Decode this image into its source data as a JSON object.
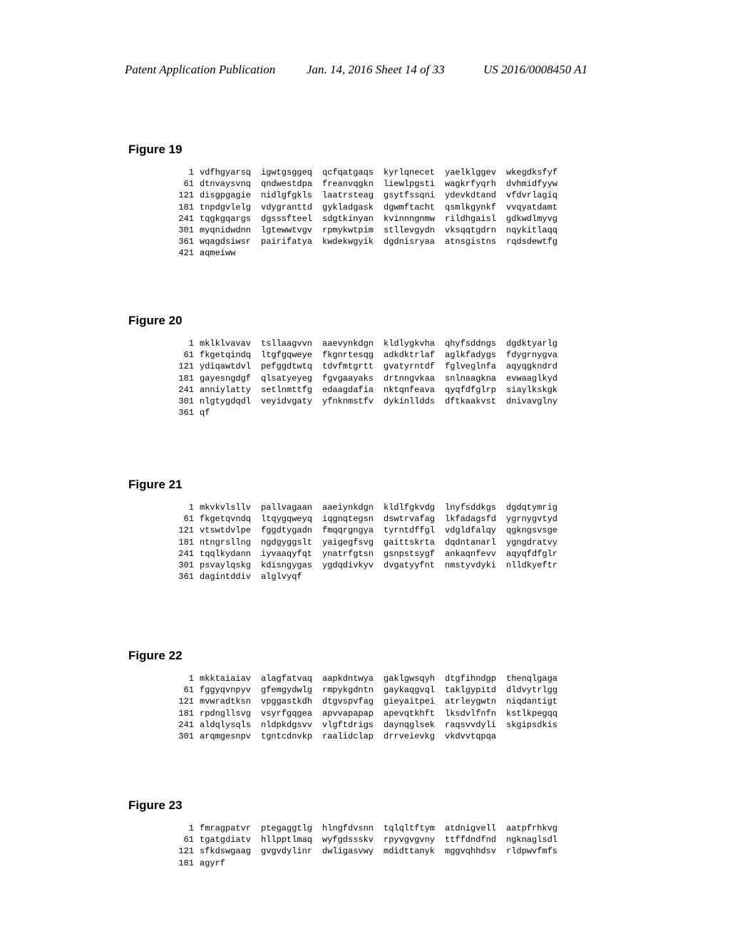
{
  "header": {
    "left": "Patent Application Publication",
    "mid": "Jan. 14, 2016  Sheet 14 of 33",
    "right": "US 2016/0008450 A1"
  },
  "figures": [
    {
      "title": "Figure 19",
      "className": "fig19",
      "lines": [
        {
          "num": "1",
          "cols": [
            "vdfhgyarsq",
            "igwtgsggeq",
            "qcfqatgaqs",
            "kyrlqnecet",
            "yaelklggev",
            "wkegdksfyf"
          ]
        },
        {
          "num": "61",
          "cols": [
            "dtnvaysvnq",
            "qndwestdpa",
            "freanvqgkn",
            "liewlpgsti",
            "wagkrfyqrh",
            "dvhmidfyyw"
          ]
        },
        {
          "num": "121",
          "cols": [
            "disgpgagie",
            "nidlgfgkls",
            "laatrsteag",
            "gsytfssqni",
            "ydevkdtand",
            "vfdvrlagiq"
          ]
        },
        {
          "num": "181",
          "cols": [
            "tnpdgvlelg",
            "vdygranttd",
            "gykladgask",
            "dgwmftacht",
            "qsmlkgynkf",
            "vvqyatdamt"
          ]
        },
        {
          "num": "241",
          "cols": [
            "tqgkgqargs",
            "dgsssfteel",
            "sdgtkinyan",
            "kvinnngnmw",
            "rildhgaisl",
            "gdkwdlmyvg"
          ]
        },
        {
          "num": "301",
          "cols": [
            "myqnidwdnn",
            "lgtewwtvgv",
            "rpmykwtpim",
            "stllevgydn",
            "vksqqtgdrn",
            "nqykitlaqq"
          ]
        },
        {
          "num": "361",
          "cols": [
            "wqagdsiwsr",
            "pairifatya",
            "kwdekwgyik",
            "dgdnisryaa",
            "atnsgistns",
            "rqdsdewtfg"
          ]
        },
        {
          "num": "421",
          "cols": [
            "aqmeiww",
            "",
            "",
            "",
            "",
            ""
          ]
        }
      ]
    },
    {
      "title": "Figure 20",
      "className": "fig20",
      "lines": [
        {
          "num": "1",
          "cols": [
            "mklklvavav",
            "tsllaagvvn",
            "aaevynkdgn",
            "kldlygkvha",
            "qhyfsddngs",
            "dgdktyarlg"
          ]
        },
        {
          "num": "61",
          "cols": [
            "fkgetqindq",
            "ltgfgqweye",
            "fkgnrtesqg",
            "adkdktrlaf",
            "aglkfadygs",
            "fdygrnygva"
          ]
        },
        {
          "num": "121",
          "cols": [
            "ydiqawtdvl",
            "pefggdtwtq",
            "tdvfmtgrtt",
            "gvatyrntdf",
            "fglveglnfa",
            "aqyqgkndrd"
          ]
        },
        {
          "num": "181",
          "cols": [
            "gayesngdgf",
            "qlsatyeyeg",
            "fgvgaayaks",
            "drtnngvkaa",
            "snlnaagkna",
            "evwaaglkyd"
          ]
        },
        {
          "num": "241",
          "cols": [
            "anniylatty",
            "setlnmttfg",
            "edaagdafia",
            "nktqnfeava",
            "qyqfdfglrp",
            "siaylkskgk"
          ]
        },
        {
          "num": "301",
          "cols": [
            "nlgtygdqdl",
            "veyidvgaty",
            "yfnknmstfv",
            "dykinlldds",
            "dftkaakvst",
            "dnivavglny"
          ]
        },
        {
          "num": "361",
          "cols": [
            "qf",
            "",
            "",
            "",
            "",
            ""
          ]
        }
      ]
    },
    {
      "title": "Figure 21",
      "className": "fig21",
      "lines": [
        {
          "num": "1",
          "cols": [
            "mkvkvlsllv",
            "pallvagaan",
            "aaeiynkdgn",
            "kldlfgkvdg",
            "lnyfsddkgs",
            "dgdqtymrig"
          ]
        },
        {
          "num": "61",
          "cols": [
            "fkgetqvndq",
            "ltqygqweyq",
            "iqgnqtegsn",
            "dswtrvafag",
            "lkfadagsfd",
            "ygrnygvtyd"
          ]
        },
        {
          "num": "121",
          "cols": [
            "vtswtdvlpe",
            "fggdtygadn",
            "fmqqrgngya",
            "tyrntdffgl",
            "vdgldfalqy",
            "qgkngsvsge"
          ]
        },
        {
          "num": "181",
          "cols": [
            "ntngrsllng",
            "ngdgyggslt",
            "yaigegfsvg",
            "gaittskrta",
            "dqdntanarl",
            "ygngdratvy"
          ]
        },
        {
          "num": "241",
          "cols": [
            "tqqlkydann",
            "iyvaaqyfqt",
            "ynatrfgtsn",
            "gsnpstsygf",
            "ankaqnfevv",
            "aqyqfdfglr"
          ]
        },
        {
          "num": "301",
          "cols": [
            "psvaylqskg",
            "kdisngygas",
            "ygdqdivkyv",
            "dvgatyyfnt",
            "nmstyvdyki",
            "nlldkyeftr"
          ]
        },
        {
          "num": "361",
          "cols": [
            "dagintddiv",
            "alglvyqf",
            "",
            "",
            "",
            ""
          ]
        }
      ]
    },
    {
      "title": "Figure 22",
      "className": "fig22",
      "lines": [
        {
          "num": "1",
          "cols": [
            "mkktaiaiav",
            "alagfatvaq",
            "aapkdntwya",
            "gaklgwsqyh",
            "dtgfihndgp",
            "thenqlgaga"
          ]
        },
        {
          "num": "61",
          "cols": [
            "fggyqvnpyv",
            "gfemgydwlg",
            "rmpykgdntn",
            "gaykaqgvql",
            "taklgypitd",
            "dldvytrlgg"
          ]
        },
        {
          "num": "121",
          "cols": [
            "mvwradtksn",
            "vpggastkdh",
            "dtgvspvfag",
            "gieyaitpei",
            "atrleygwtn",
            "niqdantigt"
          ]
        },
        {
          "num": "181",
          "cols": [
            "rpdngllsvg",
            "vsyrfgqgea",
            "apvvapapap",
            "apevqtkhft",
            "lksdvlfnfn",
            "kstlkpegqq"
          ]
        },
        {
          "num": "241",
          "cols": [
            "aldqlysqls",
            "nldpkdgsvv",
            "vlgftdrigs",
            "daynqglsek",
            "raqsvvdyli",
            "skgipsdkis"
          ]
        },
        {
          "num": "301",
          "cols": [
            "arqmgesnpv",
            "tgntcdnvkp",
            "raalidclap",
            "drrveievkg",
            "vkdvvtqpqa",
            ""
          ]
        }
      ]
    },
    {
      "title": "Figure 23",
      "className": "fig23",
      "lines": [
        {
          "num": "1",
          "cols": [
            "fmragpatvr",
            "ptegaggtlg",
            "hlngfdvsnn",
            "tqlqltftym",
            "atdnigvell",
            "aatpfrhkvg"
          ]
        },
        {
          "num": "61",
          "cols": [
            "tgatgdiatv",
            "hllpptlmaq",
            "wyfgdssskv",
            "rpyvgvgvny",
            "ttffdndfnd",
            "ngknaglsdl"
          ]
        },
        {
          "num": "121",
          "cols": [
            "sfkdswgaag",
            "gvgvdylinr",
            "dwligasvwy",
            "mdidttanyk",
            "mggvqhhdsv",
            "rldpwvfmfs"
          ]
        },
        {
          "num": "181",
          "cols": [
            "agyrf",
            "",
            "",
            "",
            "",
            ""
          ]
        }
      ]
    }
  ]
}
